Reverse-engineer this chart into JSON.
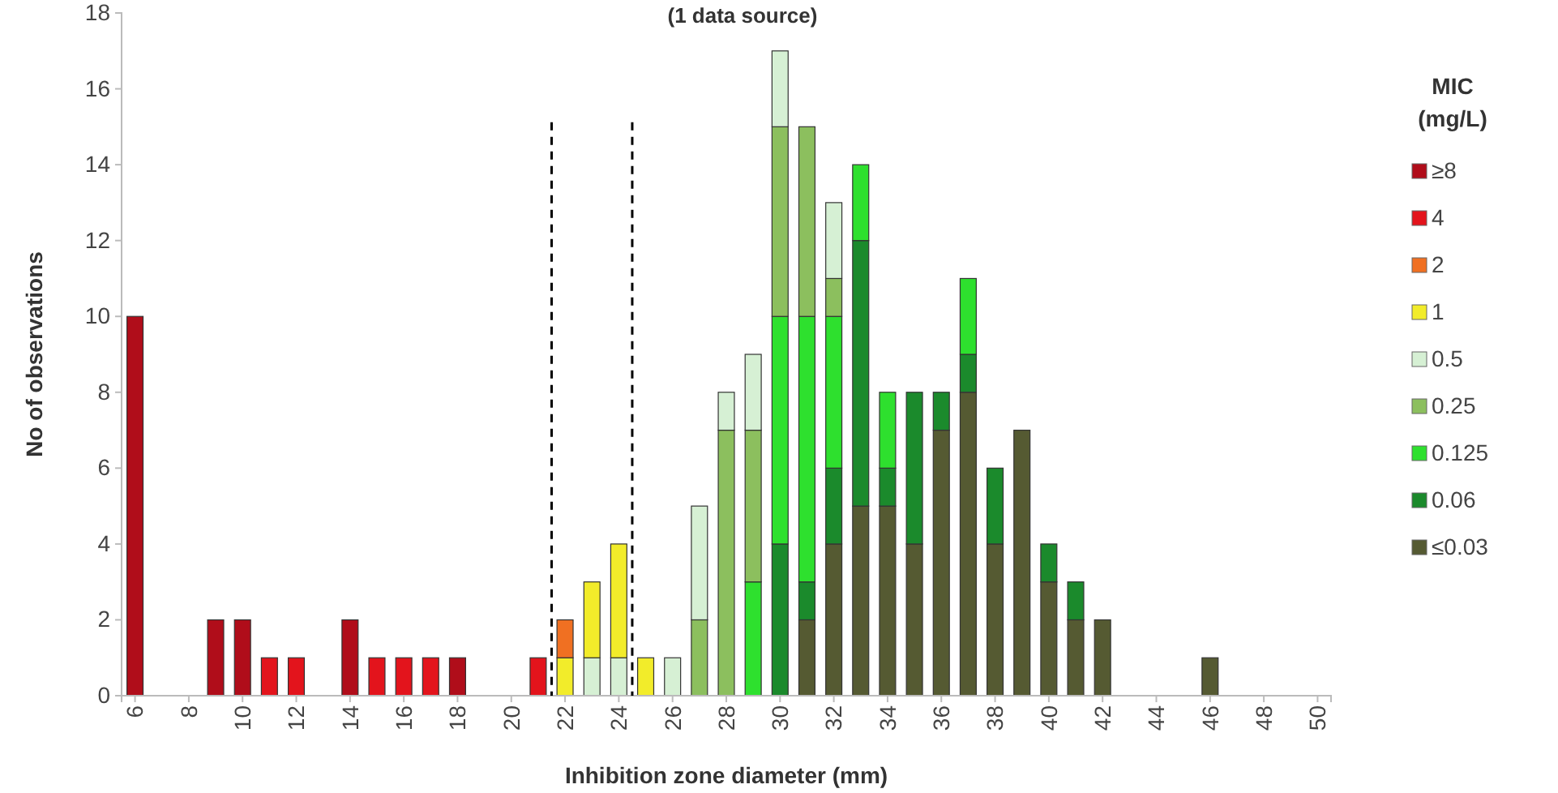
{
  "chart_data": {
    "type": "bar",
    "title": "(1 data source)",
    "xlabel": "Inhibition zone diameter (mm)",
    "ylabel": "No of observations",
    "legend_title": "MIC (mg/L)",
    "stacked": true,
    "legend": "right",
    "grid": false,
    "x": [
      6,
      7,
      8,
      9,
      10,
      11,
      12,
      13,
      14,
      15,
      16,
      17,
      18,
      19,
      20,
      21,
      22,
      23,
      24,
      25,
      26,
      27,
      28,
      29,
      30,
      31,
      32,
      33,
      34,
      35,
      36,
      37,
      38,
      39,
      40,
      41,
      42,
      43,
      44,
      45,
      46
    ],
    "xlim": [
      5.5,
      50.5
    ],
    "xticks": [
      6,
      8,
      10,
      12,
      14,
      16,
      18,
      20,
      22,
      24,
      26,
      28,
      30,
      32,
      34,
      36,
      38,
      40,
      42,
      44,
      46,
      48,
      50
    ],
    "ylim": [
      0,
      18
    ],
    "yticks": [
      0,
      2,
      4,
      6,
      8,
      10,
      12,
      14,
      16,
      18
    ],
    "ref_lines": [
      {
        "axis": "x",
        "value": 21.5,
        "line_style": "dashed",
        "color": "#000000"
      },
      {
        "axis": "x",
        "value": 24.5,
        "line_style": "dashed",
        "color": "#000000"
      }
    ],
    "series": [
      {
        "name": "≤0.03",
        "color": "#555a32",
        "values": [
          null,
          null,
          null,
          null,
          null,
          null,
          null,
          null,
          null,
          null,
          null,
          null,
          null,
          null,
          null,
          null,
          null,
          null,
          null,
          null,
          null,
          null,
          null,
          null,
          null,
          2,
          4,
          5,
          5,
          4,
          7,
          8,
          4,
          7,
          3,
          2,
          2,
          null,
          null,
          null,
          1
        ]
      },
      {
        "name": "0.06",
        "color": "#1b8a2c",
        "values": [
          null,
          null,
          null,
          null,
          null,
          null,
          null,
          null,
          null,
          null,
          null,
          null,
          null,
          null,
          null,
          null,
          null,
          null,
          null,
          null,
          null,
          null,
          null,
          null,
          4,
          1,
          2,
          7,
          1,
          4,
          1,
          1,
          2,
          null,
          1,
          1,
          null,
          null,
          null,
          null,
          null
        ]
      },
      {
        "name": "0.125",
        "color": "#2ee02e",
        "values": [
          null,
          null,
          null,
          null,
          null,
          null,
          null,
          null,
          null,
          null,
          null,
          null,
          null,
          null,
          null,
          null,
          null,
          null,
          null,
          null,
          null,
          null,
          null,
          3,
          6,
          7,
          4,
          2,
          2,
          null,
          null,
          2,
          null,
          null,
          null,
          null,
          null,
          null,
          null,
          null,
          null
        ]
      },
      {
        "name": "0.25",
        "color": "#8cbf5e",
        "values": [
          null,
          null,
          null,
          null,
          null,
          null,
          null,
          null,
          null,
          null,
          null,
          null,
          null,
          null,
          null,
          null,
          null,
          null,
          null,
          null,
          null,
          2,
          7,
          4,
          5,
          5,
          1,
          null,
          null,
          null,
          null,
          null,
          null,
          null,
          null,
          null,
          null,
          null,
          null,
          null,
          null
        ]
      },
      {
        "name": "0.5",
        "color": "#d6f0d4",
        "values": [
          null,
          null,
          null,
          null,
          null,
          null,
          null,
          null,
          null,
          null,
          null,
          null,
          null,
          null,
          null,
          null,
          null,
          1,
          1,
          null,
          1,
          3,
          1,
          2,
          2,
          null,
          2,
          null,
          null,
          null,
          null,
          null,
          null,
          null,
          null,
          null,
          null,
          null,
          null,
          null,
          null
        ]
      },
      {
        "name": "1",
        "color": "#f2ec2a",
        "values": [
          null,
          null,
          null,
          null,
          null,
          null,
          null,
          null,
          null,
          null,
          null,
          null,
          null,
          null,
          null,
          null,
          1,
          2,
          3,
          1,
          null,
          null,
          null,
          null,
          null,
          null,
          null,
          null,
          null,
          null,
          null,
          null,
          null,
          null,
          null,
          null,
          null,
          null,
          null,
          null,
          null
        ]
      },
      {
        "name": "2",
        "color": "#f07022",
        "values": [
          null,
          null,
          null,
          null,
          null,
          null,
          null,
          null,
          null,
          null,
          null,
          null,
          null,
          null,
          null,
          null,
          1,
          null,
          null,
          null,
          null,
          null,
          null,
          null,
          null,
          null,
          null,
          null,
          null,
          null,
          null,
          null,
          null,
          null,
          null,
          null,
          null,
          null,
          null,
          null,
          null
        ]
      },
      {
        "name": "4",
        "color": "#e3141c",
        "values": [
          null,
          null,
          null,
          null,
          null,
          1,
          1,
          null,
          null,
          1,
          1,
          1,
          null,
          null,
          null,
          1,
          null,
          null,
          null,
          null,
          null,
          null,
          null,
          null,
          null,
          null,
          null,
          null,
          null,
          null,
          null,
          null,
          null,
          null,
          null,
          null,
          null,
          null,
          null,
          null,
          null
        ]
      },
      {
        "name": "≥8",
        "color": "#b00d1a",
        "values": [
          10,
          null,
          null,
          2,
          2,
          null,
          null,
          null,
          2,
          null,
          null,
          null,
          1,
          null,
          null,
          null,
          null,
          null,
          null,
          null,
          null,
          null,
          null,
          null,
          null,
          null,
          null,
          null,
          null,
          null,
          null,
          null,
          null,
          null,
          null,
          null,
          null,
          null,
          null,
          null,
          null
        ]
      }
    ]
  }
}
